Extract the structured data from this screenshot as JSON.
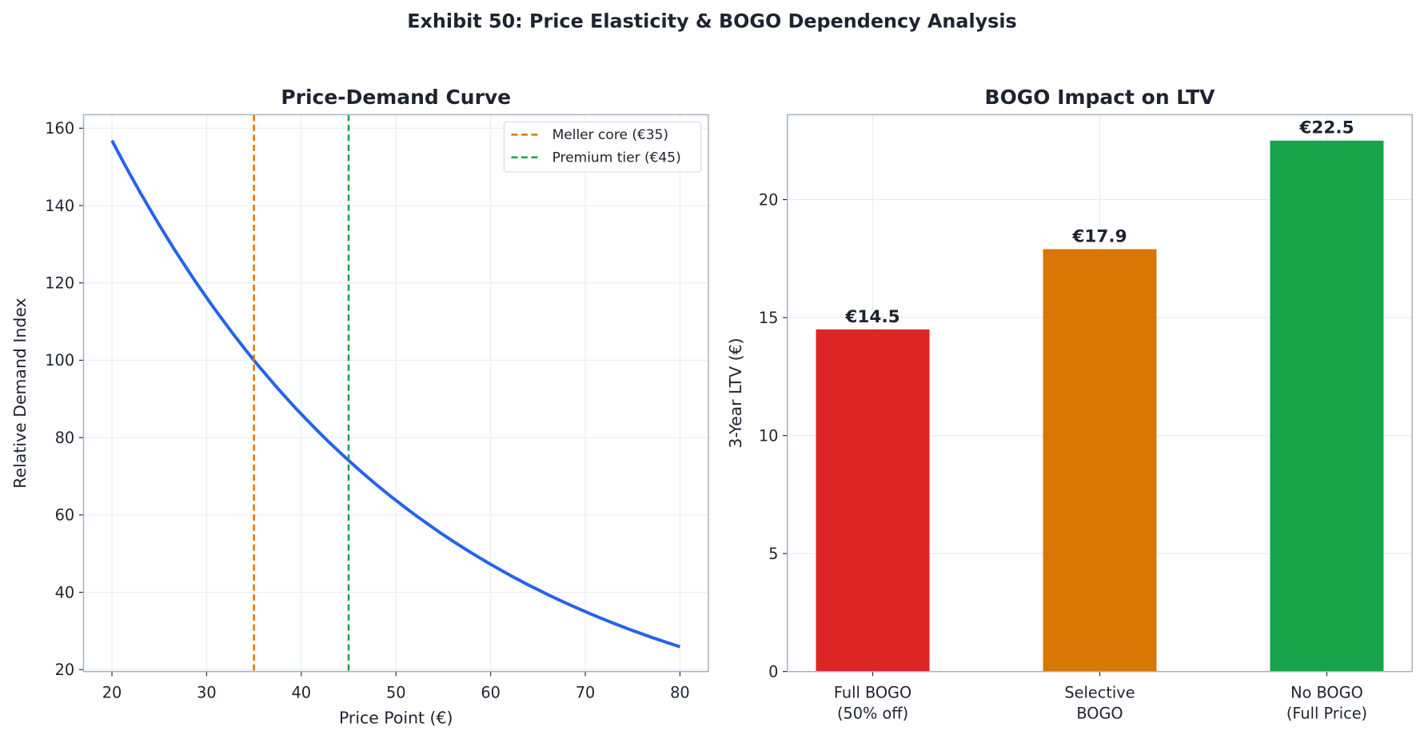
{
  "title": "Exhibit 50: Price Elasticity & BOGO Dependency Analysis",
  "chart_data": [
    {
      "type": "line",
      "title": "Price-Demand Curve",
      "xlabel": "Price Point (€)",
      "ylabel": "Relative Demand Index",
      "xlim": [
        17,
        83
      ],
      "ylim": [
        19.5,
        163.5
      ],
      "xticks": [
        20,
        30,
        40,
        50,
        60,
        70,
        80
      ],
      "yticks": [
        20,
        40,
        60,
        80,
        100,
        120,
        140,
        160
      ],
      "grid": true,
      "legend_position": "top-right",
      "series": [
        {
          "x": [
            20,
            25,
            30,
            35,
            40,
            45,
            50,
            55,
            60,
            65,
            70,
            75,
            80
          ],
          "y": [
            156.8,
            135.0,
            116.2,
            100.0,
            86.1,
            74.1,
            63.8,
            54.9,
            47.2,
            40.7,
            35.0,
            30.1,
            25.9
          ],
          "color": "#2563eb"
        }
      ],
      "vlines": [
        {
          "x": 35,
          "name": "Meller core (€35)",
          "color": "#d97706",
          "style": "dashed"
        },
        {
          "x": 45,
          "name": "Premium tier (€45)",
          "color": "#16a34a",
          "style": "dashed"
        }
      ]
    },
    {
      "type": "bar",
      "title": "BOGO Impact on LTV",
      "xlabel": "",
      "ylabel": "3-Year LTV (€)",
      "categories": [
        [
          "Full BOGO",
          "(50% off)"
        ],
        [
          "Selective",
          "BOGO"
        ],
        [
          "No BOGO",
          "(Full Price)"
        ]
      ],
      "values": [
        14.5,
        17.9,
        22.5
      ],
      "data_labels": [
        "€14.5",
        "€17.9",
        "€22.5"
      ],
      "colors": [
        "#dc2626",
        "#d97706",
        "#16a34a"
      ],
      "ylim": [
        0,
        23.6
      ],
      "yticks": [
        0,
        5,
        10,
        15,
        20
      ],
      "grid": true
    }
  ]
}
